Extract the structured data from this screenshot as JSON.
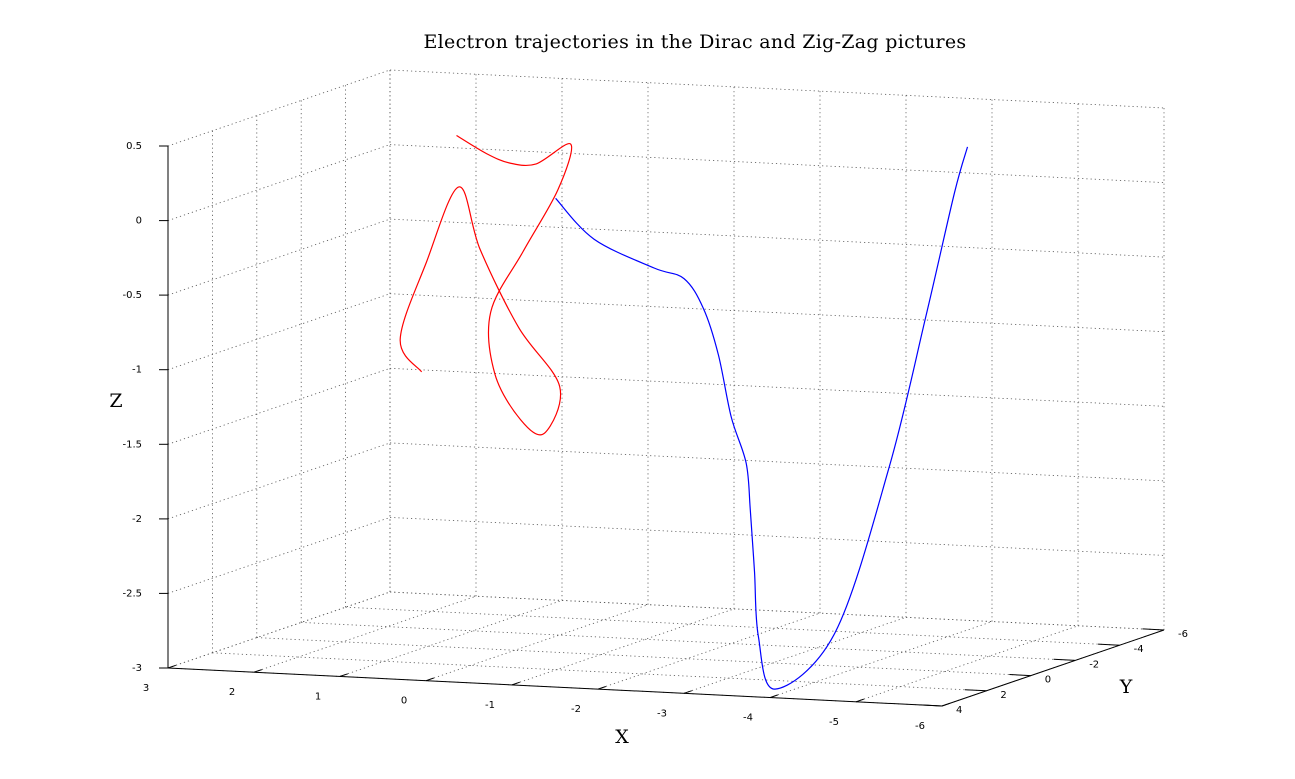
{
  "chart_data": {
    "type": "line",
    "subtype": "3d-line",
    "title": "Electron trajectories in the Dirac and Zig-Zag pictures",
    "xlabel": "X",
    "ylabel": "Y",
    "zlabel": "Z",
    "xlim": [
      -6,
      3
    ],
    "ylim": [
      -6,
      4
    ],
    "zlim": [
      -3,
      0.5
    ],
    "xticks": [
      "3",
      "2",
      "1",
      "0",
      "-1",
      "-2",
      "-3",
      "-4",
      "-5",
      "-6"
    ],
    "yticks": [
      "4",
      "2",
      "0",
      "-2",
      "-4",
      "-6"
    ],
    "zticks": [
      "0.5",
      "0",
      "-0.5",
      "-1",
      "-1.5",
      "-2",
      "-2.5",
      "-3"
    ],
    "grid": true,
    "legend": "none",
    "series": [
      {
        "color": "#ff0000",
        "points": [
          [
            0.6,
            0.3,
            0.45
          ],
          [
            0.2,
            0.5,
            0.35
          ],
          [
            -0.1,
            0.6,
            0.3
          ],
          [
            -0.3,
            0.2,
            0.28
          ],
          [
            -0.6,
            -0.2,
            0.4
          ],
          [
            -0.5,
            0.0,
            0.1
          ],
          [
            -0.2,
            0.4,
            -0.3
          ],
          [
            0.1,
            0.7,
            -0.7
          ],
          [
            0.0,
            0.9,
            -1.1
          ],
          [
            -0.3,
            0.9,
            -1.4
          ],
          [
            -0.5,
            0.6,
            -1.5
          ],
          [
            -0.6,
            0.3,
            -1.2
          ],
          [
            -0.2,
            0.6,
            -0.8
          ],
          [
            0.3,
            0.4,
            -0.3
          ],
          [
            0.6,
            0.2,
            0.1
          ],
          [
            0.9,
            0.5,
            -0.4
          ],
          [
            1.1,
            0.9,
            -0.9
          ],
          [
            0.8,
            1.1,
            -1.1
          ]
        ]
      },
      {
        "color": "#0000ff",
        "points": [
          [
            -0.5,
            0.1,
            0.05
          ],
          [
            -1.0,
            0.3,
            -0.2
          ],
          [
            -1.8,
            0.7,
            -0.35
          ],
          [
            -2.2,
            0.9,
            -0.4
          ],
          [
            -2.4,
            0.8,
            -0.6
          ],
          [
            -2.6,
            0.9,
            -0.9
          ],
          [
            -2.8,
            1.1,
            -1.3
          ],
          [
            -3.0,
            1.2,
            -1.6
          ],
          [
            -3.1,
            1.4,
            -1.9
          ],
          [
            -3.2,
            1.6,
            -2.3
          ],
          [
            -3.4,
            2.2,
            -2.7
          ],
          [
            -3.8,
            3.0,
            -3.0
          ],
          [
            -4.5,
            3.0,
            -2.6
          ],
          [
            -5.0,
            2.5,
            -1.5
          ],
          [
            -5.3,
            2.0,
            -0.5
          ],
          [
            -5.5,
            1.5,
            0.3
          ],
          [
            -5.6,
            1.3,
            0.6
          ]
        ]
      }
    ]
  }
}
